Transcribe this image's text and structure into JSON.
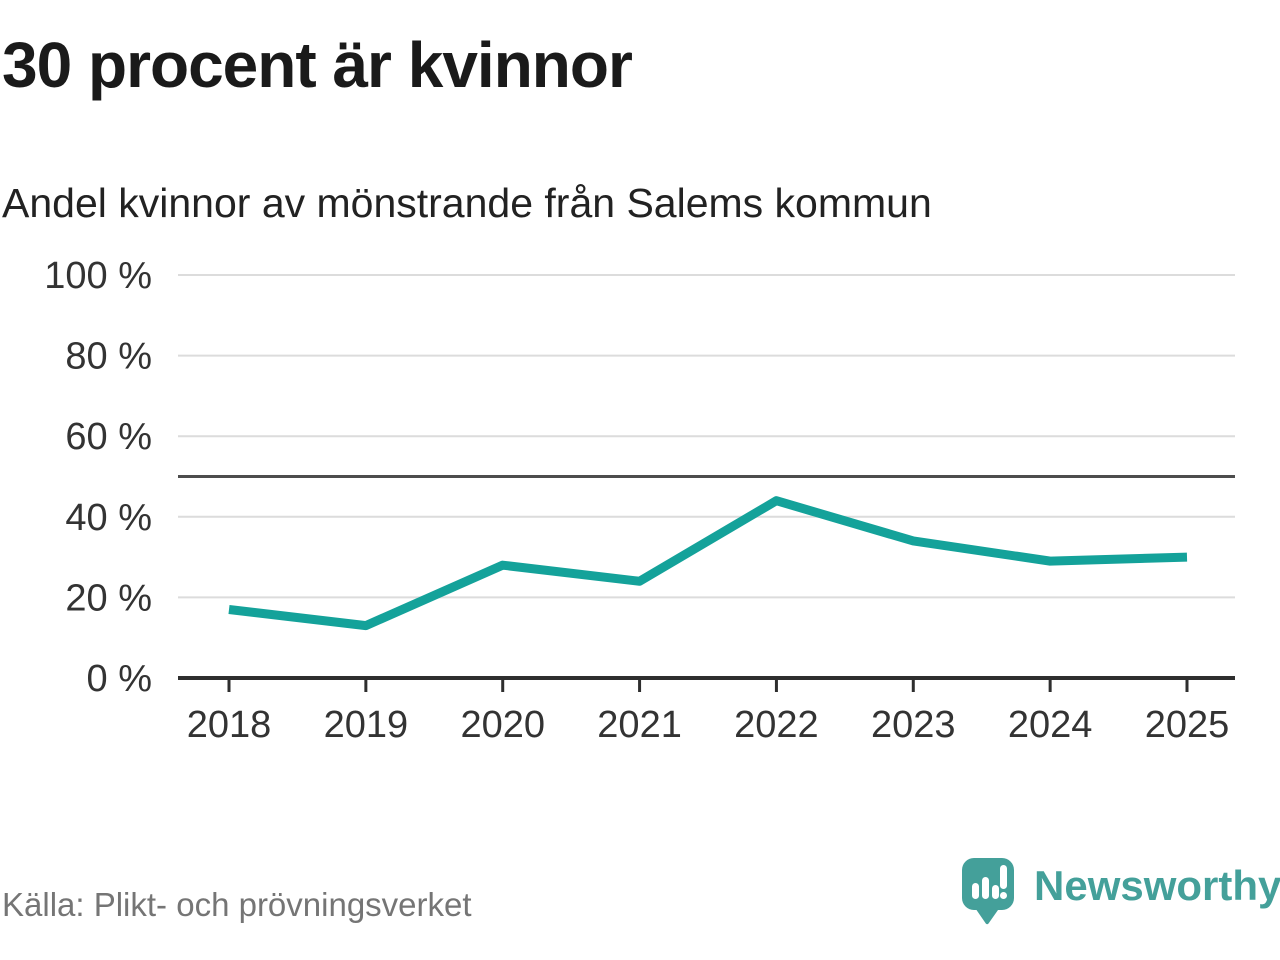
{
  "header": {
    "title": "30 procent är kvinnor",
    "subtitle": "Andel kvinnor av mönstrande från Salems kommun"
  },
  "chart_data": {
    "type": "line",
    "title": "30 procent är kvinnor",
    "subtitle": "Andel kvinnor av mönstrande från Salems kommun",
    "x": [
      "2018",
      "2019",
      "2020",
      "2021",
      "2022",
      "2023",
      "2024",
      "2025"
    ],
    "series": [
      {
        "name": "Andel kvinnor av mönstrande",
        "values": [
          17,
          13,
          28,
          24,
          44,
          34,
          29,
          30
        ]
      }
    ],
    "unit": "%",
    "xlabel": "",
    "ylabel": "",
    "ylim": [
      0,
      100
    ],
    "yticks": [
      0,
      20,
      40,
      60,
      80,
      100
    ],
    "ytick_format": "{v} %",
    "reference_line": 50,
    "grid": true,
    "legend": "none",
    "colors": {
      "line": "#14a29a",
      "reference_line": "#4d4d4d",
      "gridline": "#dcdcdc",
      "axis": "#2e2e2e",
      "tick_label": "#333333"
    }
  },
  "footer": {
    "source": "Källa: Plikt- och prövningsverket",
    "logo_text": "Newsworthy",
    "logo_color": "#44a09a"
  }
}
